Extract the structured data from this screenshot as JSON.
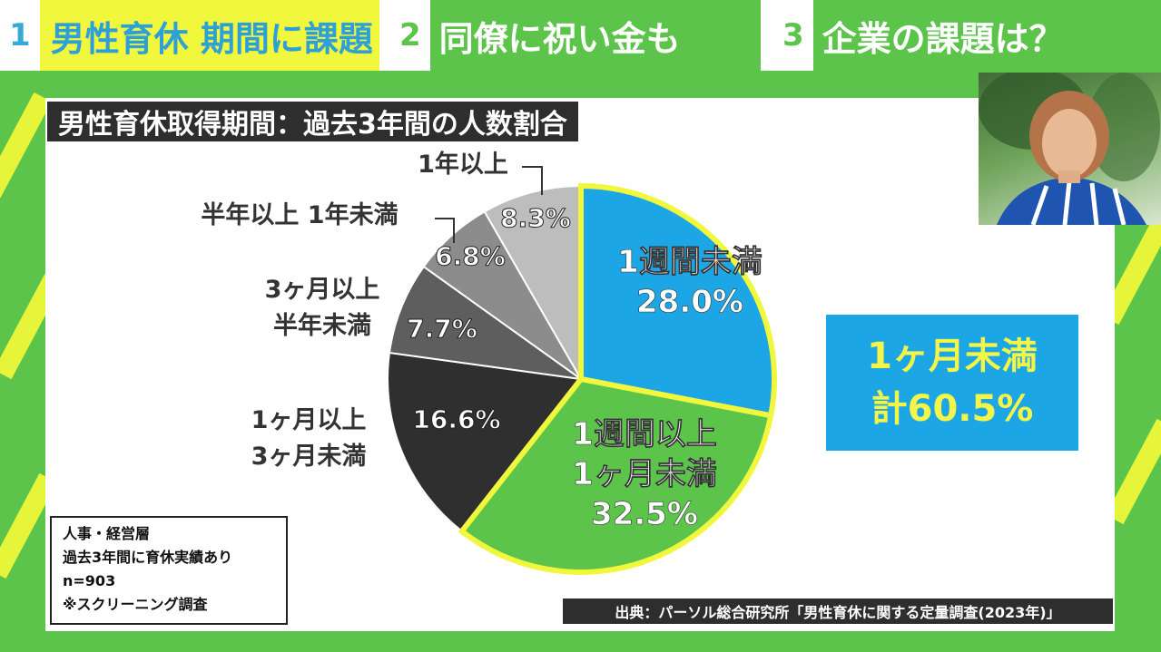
{
  "tabs": [
    {
      "num": "1",
      "label": "男性育休 期間に課題"
    },
    {
      "num": "2",
      "label": "同僚に祝い金も"
    },
    {
      "num": "3",
      "label": "企業の課題は？"
    }
  ],
  "chart_title": "男性育休取得期間：過去3年間の人数割合",
  "summary": {
    "line1": "1ヶ月未満",
    "line2": "計60.5%"
  },
  "note": {
    "line1": "人事・経営層",
    "line2": "過去3年間に育休実績あり",
    "line3": "n=903",
    "line4": "※スクリーニング調査"
  },
  "source": "出典：パーソル総合研究所「男性育休に関する定量調査(2023年)」",
  "colors": {
    "background": "#5cc44a",
    "accent_yellow": "#f1f73c",
    "highlight_blue": "#1da6e6",
    "highlight_green": "#5cc44a"
  },
  "chart_data": {
    "type": "pie",
    "title": "男性育休取得期間：過去3年間の人数割合",
    "slices": [
      {
        "label": "1週間未満",
        "value": 28.0,
        "value_label": "28.0%",
        "color": "#1da6e6"
      },
      {
        "label": "1週間以上 1ヶ月未満",
        "value": 32.5,
        "value_label": "32.5%",
        "color": "#5cc44a"
      },
      {
        "label": "1ヶ月以上 3ヶ月未満",
        "value": 16.6,
        "value_label": "16.6%",
        "color": "#2f2f2f"
      },
      {
        "label": "3ヶ月以上 半年未満",
        "value": 7.7,
        "value_label": "7.7%",
        "color": "#5e5e5e"
      },
      {
        "label": "半年以上 1年未満",
        "value": 6.8,
        "value_label": "6.8%",
        "color": "#8c8c8c"
      },
      {
        "label": "1年以上",
        "value": 8.3,
        "value_label": "8.3%",
        "color": "#bdbdbd"
      }
    ],
    "start": "12 o'clock",
    "direction": "clockwise",
    "highlighted": [
      "1週間未満",
      "1週間以上 1ヶ月未満"
    ]
  }
}
